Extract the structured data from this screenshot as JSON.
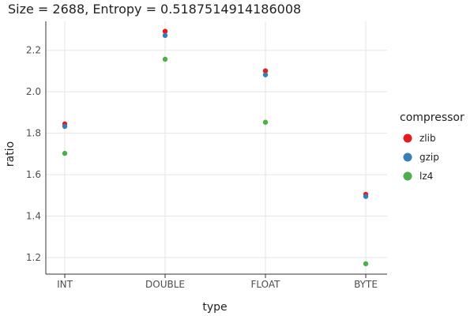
{
  "chart_data": {
    "type": "scatter",
    "title": "Size = 2688, Entropy = 0.5187514914186008",
    "xlabel": "type",
    "ylabel": "ratio",
    "categories": [
      "INT",
      "DOUBLE",
      "FLOAT",
      "BYTE"
    ],
    "ylim": [
      1.12,
      2.34
    ],
    "yticks": [
      "1.2",
      "1.4",
      "1.6",
      "1.8",
      "2.0",
      "2.2"
    ],
    "grid": true,
    "legend": {
      "title": "compressor",
      "position": "right"
    },
    "series": [
      {
        "name": "zlib",
        "color": "#e41a1c",
        "values": [
          1.845,
          2.292,
          2.101,
          1.505
        ]
      },
      {
        "name": "gzip",
        "color": "#377eb8",
        "values": [
          1.833,
          2.272,
          2.082,
          1.495
        ]
      },
      {
        "name": "lz4",
        "color": "#4daf4a",
        "values": [
          1.703,
          2.157,
          1.853,
          1.17
        ]
      }
    ]
  }
}
